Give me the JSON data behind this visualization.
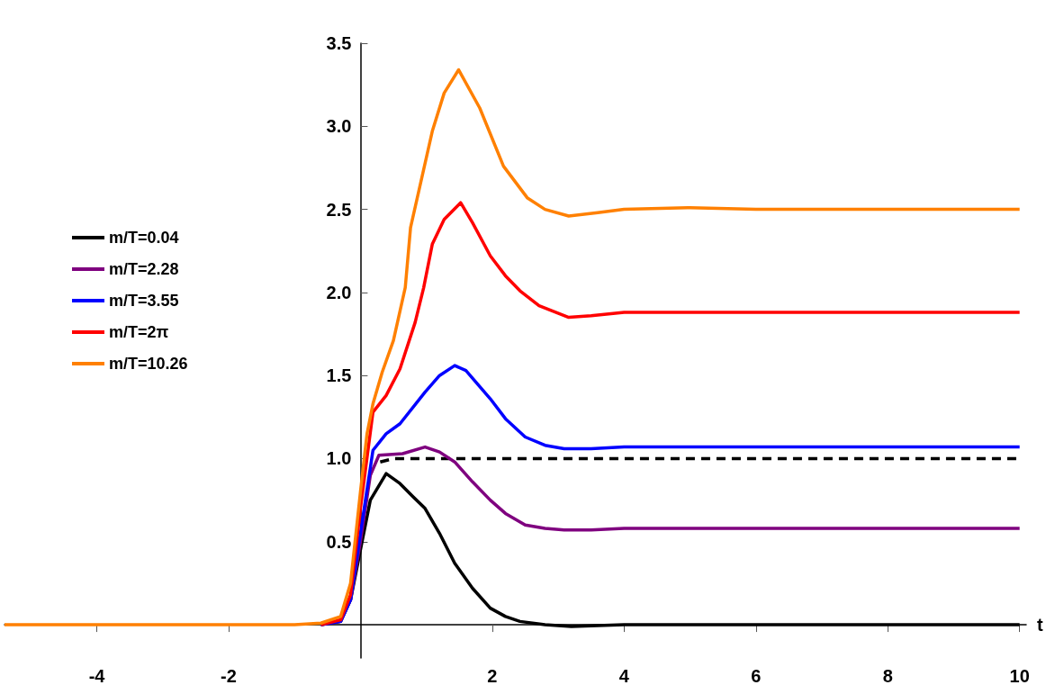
{
  "chart_data": {
    "type": "line",
    "xlabel": "t",
    "xlim": [
      -5.4,
      10.1
    ],
    "ylim": [
      -0.2,
      3.5
    ],
    "xticks": [
      -4,
      -2,
      2,
      4,
      6,
      8,
      10
    ],
    "yticks": [
      {
        "value": 0.5,
        "label": "0.5"
      },
      {
        "value": 1,
        "label": "1.0"
      },
      {
        "value": 1.5,
        "label": "1.5"
      },
      {
        "value": 2,
        "label": "2.0"
      },
      {
        "value": 2.5,
        "label": "2.5"
      },
      {
        "value": 3,
        "label": "3.0"
      },
      {
        "value": 3.5,
        "label": "3.5"
      }
    ],
    "grid": false,
    "legend": "left",
    "marker": "none",
    "line_style": "solid",
    "series": [
      {
        "name": "m/T=0.04",
        "color": "#000000",
        "x": [
          -0.6,
          -0.3,
          -0.15,
          0,
          0.15,
          0.39,
          0.6,
          0.8,
          0.98,
          1.2,
          1.43,
          1.7,
          1.97,
          2.2,
          2.42,
          2.8,
          3.2,
          4,
          5,
          6,
          7,
          8,
          9,
          10
        ],
        "values": [
          0,
          0.02,
          0.15,
          0.45,
          0.75,
          0.91,
          0.85,
          0.77,
          0.7,
          0.55,
          0.37,
          0.22,
          0.1,
          0.05,
          0.02,
          0,
          -0.01,
          0,
          0,
          0,
          0,
          0,
          0,
          0
        ]
      },
      {
        "name": "m/T=2.28",
        "color": "#7f007f",
        "x": [
          -0.6,
          -0.3,
          -0.15,
          0,
          0.15,
          0.28,
          0.64,
          0.98,
          1.2,
          1.43,
          1.7,
          1.97,
          2.2,
          2.5,
          2.8,
          3.09,
          3.5,
          4,
          5,
          6,
          7,
          8,
          9,
          10
        ],
        "values": [
          0,
          0.02,
          0.15,
          0.5,
          0.9,
          1.02,
          1.03,
          1.07,
          1.04,
          0.98,
          0.86,
          0.75,
          0.67,
          0.6,
          0.58,
          0.57,
          0.57,
          0.58,
          0.58,
          0.58,
          0.58,
          0.58,
          0.58,
          0.58
        ]
      },
      {
        "name": "m/T=3.55",
        "color": "#0000ff",
        "x": [
          -0.6,
          -0.3,
          -0.15,
          0,
          0.19,
          0.39,
          0.6,
          0.98,
          1.2,
          1.43,
          1.6,
          1.97,
          2.2,
          2.5,
          2.8,
          3.09,
          3.5,
          4,
          5,
          6,
          7,
          8,
          9,
          10
        ],
        "values": [
          0,
          0.02,
          0.15,
          0.55,
          1.05,
          1.15,
          1.21,
          1.4,
          1.5,
          1.56,
          1.53,
          1.36,
          1.24,
          1.13,
          1.08,
          1.06,
          1.06,
          1.07,
          1.07,
          1.07,
          1.07,
          1.07,
          1.07,
          1.07
        ]
      },
      {
        "name": "m/T=2π",
        "color": "#ff0000",
        "x": [
          -0.6,
          -0.3,
          -0.15,
          0,
          0.19,
          0.39,
          0.6,
          0.83,
          0.96,
          1.09,
          1.27,
          1.52,
          1.7,
          1.97,
          2.2,
          2.42,
          2.71,
          3.16,
          3.5,
          4,
          5,
          6,
          7,
          8,
          9,
          10
        ],
        "values": [
          0,
          0.03,
          0.18,
          0.7,
          1.28,
          1.38,
          1.54,
          1.82,
          2.03,
          2.29,
          2.44,
          2.54,
          2.42,
          2.22,
          2.1,
          2.01,
          1.92,
          1.85,
          1.86,
          1.88,
          1.88,
          1.88,
          1.88,
          1.88,
          1.88,
          1.88
        ]
      },
      {
        "name": "m/T=10.26",
        "color": "#ff8000",
        "x": [
          -5.4,
          -4,
          -3,
          -2,
          -1,
          -0.6,
          -0.3,
          -0.15,
          0,
          0.1,
          0.19,
          0.33,
          0.5,
          0.68,
          0.76,
          1.09,
          1.27,
          1.49,
          1.81,
          2.17,
          2.53,
          2.8,
          3.16,
          3.6,
          4,
          5,
          6,
          7,
          8,
          9,
          10
        ],
        "values": [
          0,
          0,
          0,
          0,
          0,
          0.01,
          0.05,
          0.25,
          0.8,
          1.15,
          1.33,
          1.52,
          1.71,
          2.03,
          2.39,
          2.97,
          3.2,
          3.34,
          3.11,
          2.76,
          2.57,
          2.5,
          2.46,
          2.48,
          2.5,
          2.51,
          2.5,
          2.5,
          2.5,
          2.5,
          2.5
        ]
      },
      {
        "color": "#000000",
        "line_style": "dashed",
        "x": [
          0.3,
          0.5,
          1,
          2,
          4,
          6,
          8,
          10
        ],
        "values": [
          0.98,
          1.0,
          1.0,
          1.0,
          1.0,
          1.0,
          1.0,
          1.0
        ]
      }
    ]
  }
}
